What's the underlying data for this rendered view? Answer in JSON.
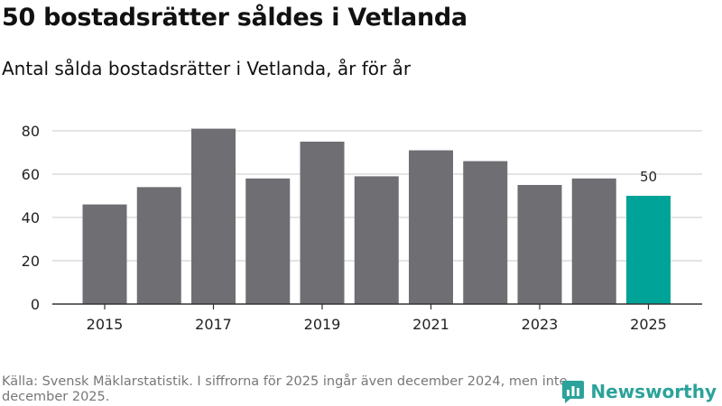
{
  "title": "50 bostadsrätter såldes i Vetlanda",
  "subtitle": "Antal sålda bostadsrätter i Vetlanda, år för år",
  "footer": "Källa: Svensk Mäklarstatistik. I siffrorna för 2025 ingår även december 2024, men inte december 2025.",
  "brand": {
    "name": "Newsworthy",
    "logo_icon": "bar-chart-speech-bubble-icon",
    "color": "#2ba39a"
  },
  "chart_data": {
    "type": "bar",
    "title": "50 bostadsrätter såldes i Vetlanda",
    "subtitle": "Antal sålda bostadsrätter i Vetlanda, år för år",
    "xlabel": "",
    "ylabel": "",
    "categories": [
      "2015",
      "2016",
      "2017",
      "2018",
      "2019",
      "2020",
      "2021",
      "2022",
      "2023",
      "2024",
      "2025"
    ],
    "values": [
      46,
      54,
      81,
      58,
      75,
      59,
      71,
      66,
      55,
      58,
      50
    ],
    "x_tick_labels": [
      "2015",
      "",
      "2017",
      "",
      "2019",
      "",
      "2021",
      "",
      "2023",
      "",
      "2025"
    ],
    "y_ticks": [
      0,
      20,
      40,
      60,
      80
    ],
    "ylim": [
      0,
      80
    ],
    "grid": true,
    "highlight_index": 10,
    "annotations": [
      {
        "category": "2025",
        "text": "50"
      }
    ],
    "colors": {
      "bar": "#6f6e73",
      "highlight": "#00a398",
      "grid": "#dcdcdc",
      "axis": "#333333"
    }
  }
}
